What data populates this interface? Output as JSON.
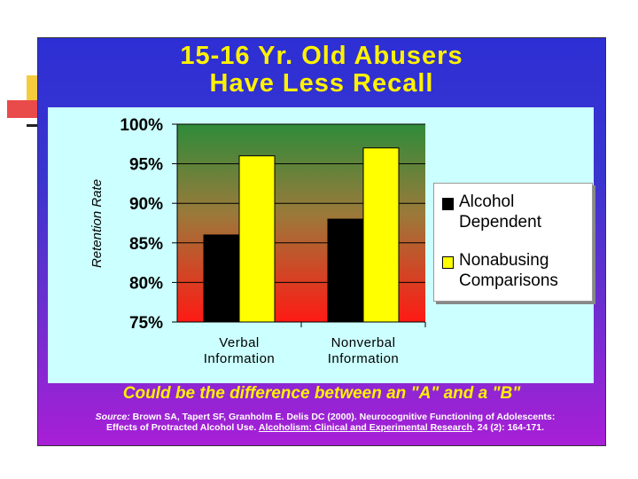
{
  "slide": {
    "title_line1": "15-16 Yr. Old Abusers",
    "title_line2": "Have Less Recall",
    "caption": "Could be the difference between an \"A\" and a \"B\"",
    "source_label": "Source:",
    "source_text1": "Brown SA, Tapert SF, Granholm E. Delis DC (2000). Neurocognitive Functioning of Adolescents:",
    "source_text2": "Effects of Protracted Alcohol Use.",
    "source_journal": "Alcoholism: Clinical and Experimental Research",
    "source_text3": ". 24 (2): 164-171.",
    "colors": {
      "panel": "#2d2fd4",
      "title": "#fff200",
      "chart_bg": "#ccffff"
    }
  },
  "chart_data": {
    "type": "bar",
    "categories": [
      "Verbal Information",
      "Nonverbal Information"
    ],
    "category_lines": [
      [
        "Verbal",
        "Information"
      ],
      [
        "Nonverbal",
        "Information"
      ]
    ],
    "series": [
      {
        "name": "Alcohol Dependent",
        "legend_lines": [
          "Alcohol",
          "Dependent"
        ],
        "color": "#000000",
        "values": [
          86,
          88
        ]
      },
      {
        "name": "Nonabusing Comparisons",
        "legend_lines": [
          "Nonabusing",
          "Comparisons"
        ],
        "color": "#ffff00",
        "values": [
          96,
          97
        ]
      }
    ],
    "ylabel": "Retention Rate",
    "ylim": [
      75,
      100
    ],
    "yticks": [
      75,
      80,
      85,
      90,
      95,
      100
    ],
    "ytick_labels": [
      "75%",
      "80%",
      "85%",
      "90%",
      "95%",
      "100%"
    ],
    "plot_background": "gradient green to red",
    "legend_position": "right"
  }
}
